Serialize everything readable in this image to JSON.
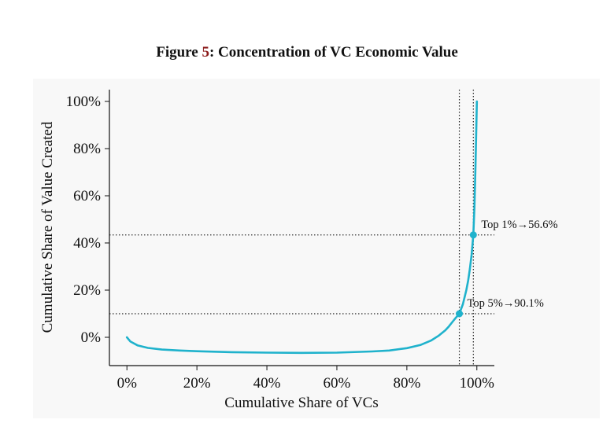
{
  "figure": {
    "label": "Figure",
    "number": "5",
    "separator": ":",
    "title": "Concentration of VC Economic Value"
  },
  "chart_data": {
    "type": "line",
    "xlabel": "Cumulative Share of VCs",
    "ylabel": "Cumulative Share of Value Created",
    "xlim": [
      -5,
      105
    ],
    "ylim": [
      -12,
      105
    ],
    "x_ticks": [
      0,
      20,
      40,
      60,
      80,
      100
    ],
    "x_tick_labels": [
      "0%",
      "20%",
      "40%",
      "60%",
      "80%",
      "100%"
    ],
    "y_ticks": [
      0,
      20,
      40,
      60,
      80,
      100
    ],
    "y_tick_labels": [
      "0%",
      "20%",
      "40%",
      "60%",
      "80%",
      "100%"
    ],
    "grid": false,
    "line_color": "#1fb2cc",
    "series": [
      {
        "x": [
          0,
          1,
          3,
          6,
          10,
          15,
          20,
          30,
          40,
          50,
          60,
          70,
          75,
          80,
          84,
          87,
          89,
          91,
          92,
          93,
          94,
          95,
          96,
          97,
          97.5,
          98,
          98.5,
          99,
          99.3,
          99.6,
          99.8,
          100
        ],
        "y": [
          0,
          -1.8,
          -3.4,
          -4.5,
          -5.2,
          -5.6,
          -5.9,
          -6.3,
          -6.5,
          -6.6,
          -6.5,
          -6.0,
          -5.6,
          -4.6,
          -3.2,
          -1.3,
          0.6,
          3.0,
          4.6,
          6.5,
          8.3,
          10.0,
          14.0,
          20.0,
          24.0,
          29.0,
          35.0,
          43.4,
          55.0,
          72.0,
          86.0,
          100.0
        ]
      }
    ],
    "reference_lines": {
      "vertical": [
        95,
        99
      ],
      "horizontal": [
        10,
        43.4
      ],
      "style": "dotted"
    },
    "annotations": [
      {
        "text": "Top 1%→56.6%",
        "point": [
          99,
          43.4
        ]
      },
      {
        "text": "Top 5%→90.1%",
        "point": [
          95,
          10.0
        ]
      }
    ]
  }
}
